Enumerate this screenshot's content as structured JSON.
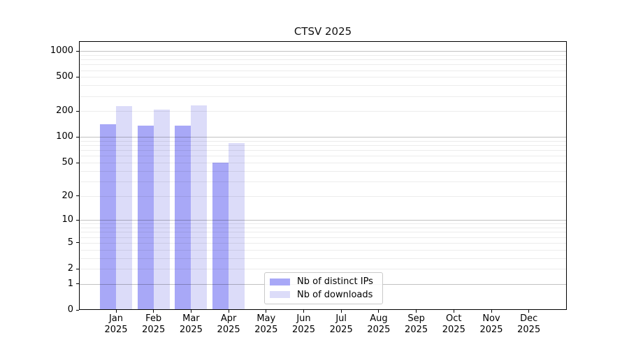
{
  "title": "CTSV 2025",
  "chart_data": {
    "type": "bar",
    "title": "CTSV 2025",
    "x_categories": [
      "Jan",
      "Feb",
      "Mar",
      "Apr",
      "May",
      "Jun",
      "Jul",
      "Aug",
      "Sep",
      "Oct",
      "Nov",
      "Dec"
    ],
    "x_year": "2025",
    "y_ticks": [
      0,
      1,
      2,
      5,
      10,
      20,
      50,
      100,
      200,
      500,
      1000
    ],
    "y_scale": "log(1+x) symlog-like",
    "ylim": [
      0,
      1300
    ],
    "grid": {
      "major_values": [
        1,
        10,
        100,
        1000
      ],
      "minor_values": [
        2,
        3,
        4,
        5,
        6,
        7,
        8,
        9,
        20,
        30,
        40,
        50,
        60,
        70,
        80,
        90,
        200,
        300,
        400,
        500,
        600,
        700,
        800,
        900
      ]
    },
    "series": [
      {
        "name": "Nb of distinct IPs",
        "color": "#a8a8f7",
        "values": [
          142,
          135,
          136,
          50,
          0,
          0,
          0,
          0,
          0,
          0,
          0,
          0
        ]
      },
      {
        "name": "Nb of downloads",
        "color": "#dcdcf9",
        "values": [
          230,
          210,
          235,
          85,
          0,
          0,
          0,
          0,
          0,
          0,
          0,
          0
        ]
      }
    ],
    "legend_position": "lower center-left"
  },
  "colors": {
    "background": "#ffffff",
    "axis": "#000000",
    "major_grid": "rgba(0,0,0,0.24)",
    "minor_grid": "rgba(0,0,0,0.075)"
  }
}
